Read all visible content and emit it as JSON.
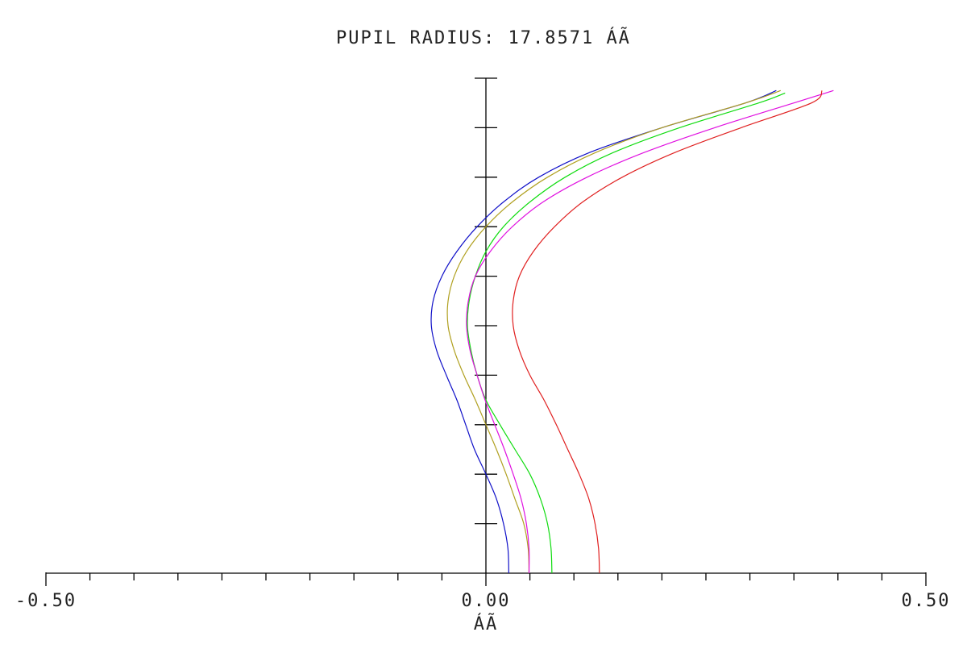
{
  "chart_data": {
    "type": "line",
    "title": "PUPIL RADIUS: 17.8571   ÁÃ",
    "xlabel": "ÁÃ",
    "ylabel": "",
    "xlim": [
      -0.5,
      0.5
    ],
    "ylim": [
      0,
      1
    ],
    "x_tick_labels": [
      "-0.50",
      "0.00",
      "0.50"
    ],
    "x_tick_label_values": [
      -0.5,
      0.0,
      0.5
    ],
    "x_minor_ticks": [
      -0.45,
      -0.4,
      -0.35,
      -0.3,
      -0.25,
      -0.2,
      -0.15,
      -0.1,
      -0.05,
      0.05,
      0.1,
      0.15,
      0.2,
      0.25,
      0.3,
      0.35,
      0.4,
      0.45
    ],
    "y_ticks": [
      0.1,
      0.2,
      0.3,
      0.4,
      0.5,
      0.6,
      0.7,
      0.8,
      0.9,
      1.0
    ],
    "grid": false,
    "legend": "none",
    "series": [
      {
        "color": "#1010c8",
        "points": [
          [
            0.026,
            0.0
          ],
          [
            0.025,
            0.05
          ],
          [
            0.02,
            0.1
          ],
          [
            0.012,
            0.15
          ],
          [
            0.0,
            0.2
          ],
          [
            -0.013,
            0.25
          ],
          [
            -0.023,
            0.3
          ],
          [
            -0.033,
            0.35
          ],
          [
            -0.045,
            0.4
          ],
          [
            -0.056,
            0.45
          ],
          [
            -0.062,
            0.5
          ],
          [
            -0.06,
            0.55
          ],
          [
            -0.05,
            0.6
          ],
          [
            -0.033,
            0.65
          ],
          [
            -0.01,
            0.7
          ],
          [
            0.02,
            0.75
          ],
          [
            0.06,
            0.8
          ],
          [
            0.118,
            0.85
          ],
          [
            0.2,
            0.9
          ],
          [
            0.295,
            0.95
          ],
          [
            0.33,
            0.975
          ]
        ]
      },
      {
        "color": "#b0a020",
        "points": [
          [
            0.049,
            0.0
          ],
          [
            0.048,
            0.05
          ],
          [
            0.043,
            0.1
          ],
          [
            0.033,
            0.15
          ],
          [
            0.023,
            0.2
          ],
          [
            0.012,
            0.25
          ],
          [
            0.0,
            0.3
          ],
          [
            -0.012,
            0.35
          ],
          [
            -0.025,
            0.4
          ],
          [
            -0.036,
            0.45
          ],
          [
            -0.043,
            0.5
          ],
          [
            -0.043,
            0.55
          ],
          [
            -0.036,
            0.6
          ],
          [
            -0.022,
            0.65
          ],
          [
            0.0,
            0.7
          ],
          [
            0.03,
            0.75
          ],
          [
            0.07,
            0.8
          ],
          [
            0.125,
            0.85
          ],
          [
            0.2,
            0.9
          ],
          [
            0.295,
            0.95
          ],
          [
            0.335,
            0.975
          ]
        ]
      },
      {
        "color": "#10dc10",
        "points": [
          [
            0.075,
            0.0
          ],
          [
            0.074,
            0.05
          ],
          [
            0.07,
            0.1
          ],
          [
            0.062,
            0.15
          ],
          [
            0.05,
            0.2
          ],
          [
            0.033,
            0.25
          ],
          [
            0.016,
            0.3
          ],
          [
            0.0,
            0.35
          ],
          [
            -0.01,
            0.4
          ],
          [
            -0.017,
            0.45
          ],
          [
            -0.021,
            0.5
          ],
          [
            -0.019,
            0.55
          ],
          [
            -0.012,
            0.6
          ],
          [
            0.0,
            0.65
          ],
          [
            0.02,
            0.7
          ],
          [
            0.05,
            0.75
          ],
          [
            0.09,
            0.8
          ],
          [
            0.145,
            0.85
          ],
          [
            0.22,
            0.9
          ],
          [
            0.31,
            0.95
          ],
          [
            0.34,
            0.97
          ]
        ]
      },
      {
        "color": "#e010e0",
        "points": [
          [
            0.049,
            0.0
          ],
          [
            0.049,
            0.05
          ],
          [
            0.046,
            0.1
          ],
          [
            0.04,
            0.15
          ],
          [
            0.031,
            0.2
          ],
          [
            0.021,
            0.25
          ],
          [
            0.01,
            0.3
          ],
          [
            -0.001,
            0.35
          ],
          [
            -0.01,
            0.4
          ],
          [
            -0.018,
            0.45
          ],
          [
            -0.022,
            0.5
          ],
          [
            -0.02,
            0.55
          ],
          [
            -0.012,
            0.6
          ],
          [
            0.005,
            0.65
          ],
          [
            0.03,
            0.7
          ],
          [
            0.065,
            0.75
          ],
          [
            0.115,
            0.8
          ],
          [
            0.18,
            0.85
          ],
          [
            0.26,
            0.9
          ],
          [
            0.35,
            0.95
          ],
          [
            0.395,
            0.975
          ]
        ]
      },
      {
        "color": "#e02020",
        "points": [
          [
            0.129,
            0.0
          ],
          [
            0.128,
            0.05
          ],
          [
            0.124,
            0.1
          ],
          [
            0.117,
            0.15
          ],
          [
            0.106,
            0.2
          ],
          [
            0.093,
            0.25
          ],
          [
            0.08,
            0.3
          ],
          [
            0.066,
            0.35
          ],
          [
            0.05,
            0.4
          ],
          [
            0.038,
            0.45
          ],
          [
            0.031,
            0.5
          ],
          [
            0.031,
            0.55
          ],
          [
            0.038,
            0.6
          ],
          [
            0.054,
            0.65
          ],
          [
            0.078,
            0.7
          ],
          [
            0.11,
            0.75
          ],
          [
            0.155,
            0.8
          ],
          [
            0.215,
            0.85
          ],
          [
            0.29,
            0.9
          ],
          [
            0.37,
            0.95
          ],
          [
            0.382,
            0.975
          ]
        ]
      }
    ]
  }
}
